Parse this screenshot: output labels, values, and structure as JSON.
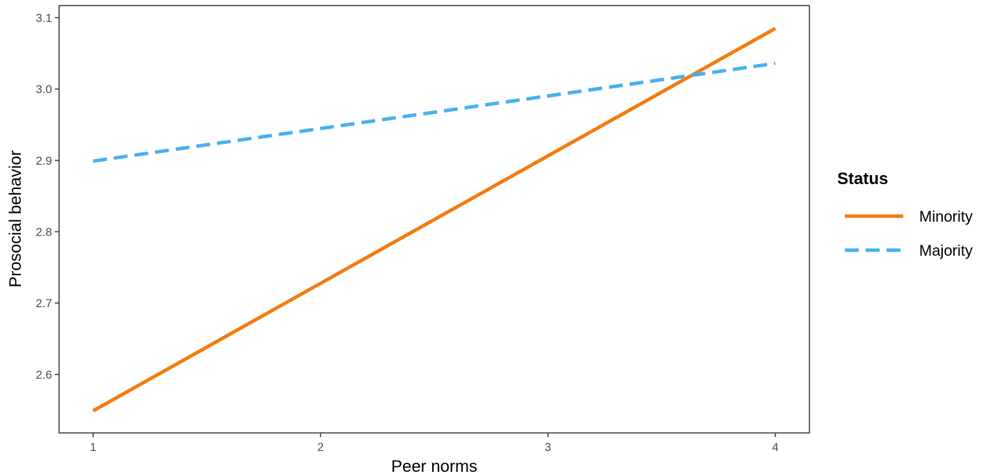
{
  "chart_data": {
    "type": "line",
    "xlabel": "Peer norms",
    "ylabel": "Prosocial behavior",
    "xlim": [
      0.85,
      4.15
    ],
    "ylim": [
      2.518,
      3.117
    ],
    "x_ticks": [
      1,
      2,
      3,
      4
    ],
    "x_tick_labels": [
      "1",
      "2",
      "3",
      "4"
    ],
    "y_ticks": [
      2.6,
      2.7,
      2.8,
      2.9,
      3.0,
      3.1
    ],
    "y_tick_labels": [
      "2.6",
      "2.7",
      "2.8",
      "2.9",
      "3.0",
      "3.1"
    ],
    "grid": false,
    "legend": {
      "title": "Status",
      "position": "right"
    },
    "series": [
      {
        "name": "Minority",
        "x": [
          1,
          4
        ],
        "y": [
          2.549,
          3.085
        ],
        "color": "#F57A10",
        "line_style": "solid"
      },
      {
        "name": "Majority",
        "x": [
          1,
          4
        ],
        "y": [
          2.899,
          3.036
        ],
        "color": "#49B0EC",
        "line_style": "dashed"
      }
    ]
  }
}
